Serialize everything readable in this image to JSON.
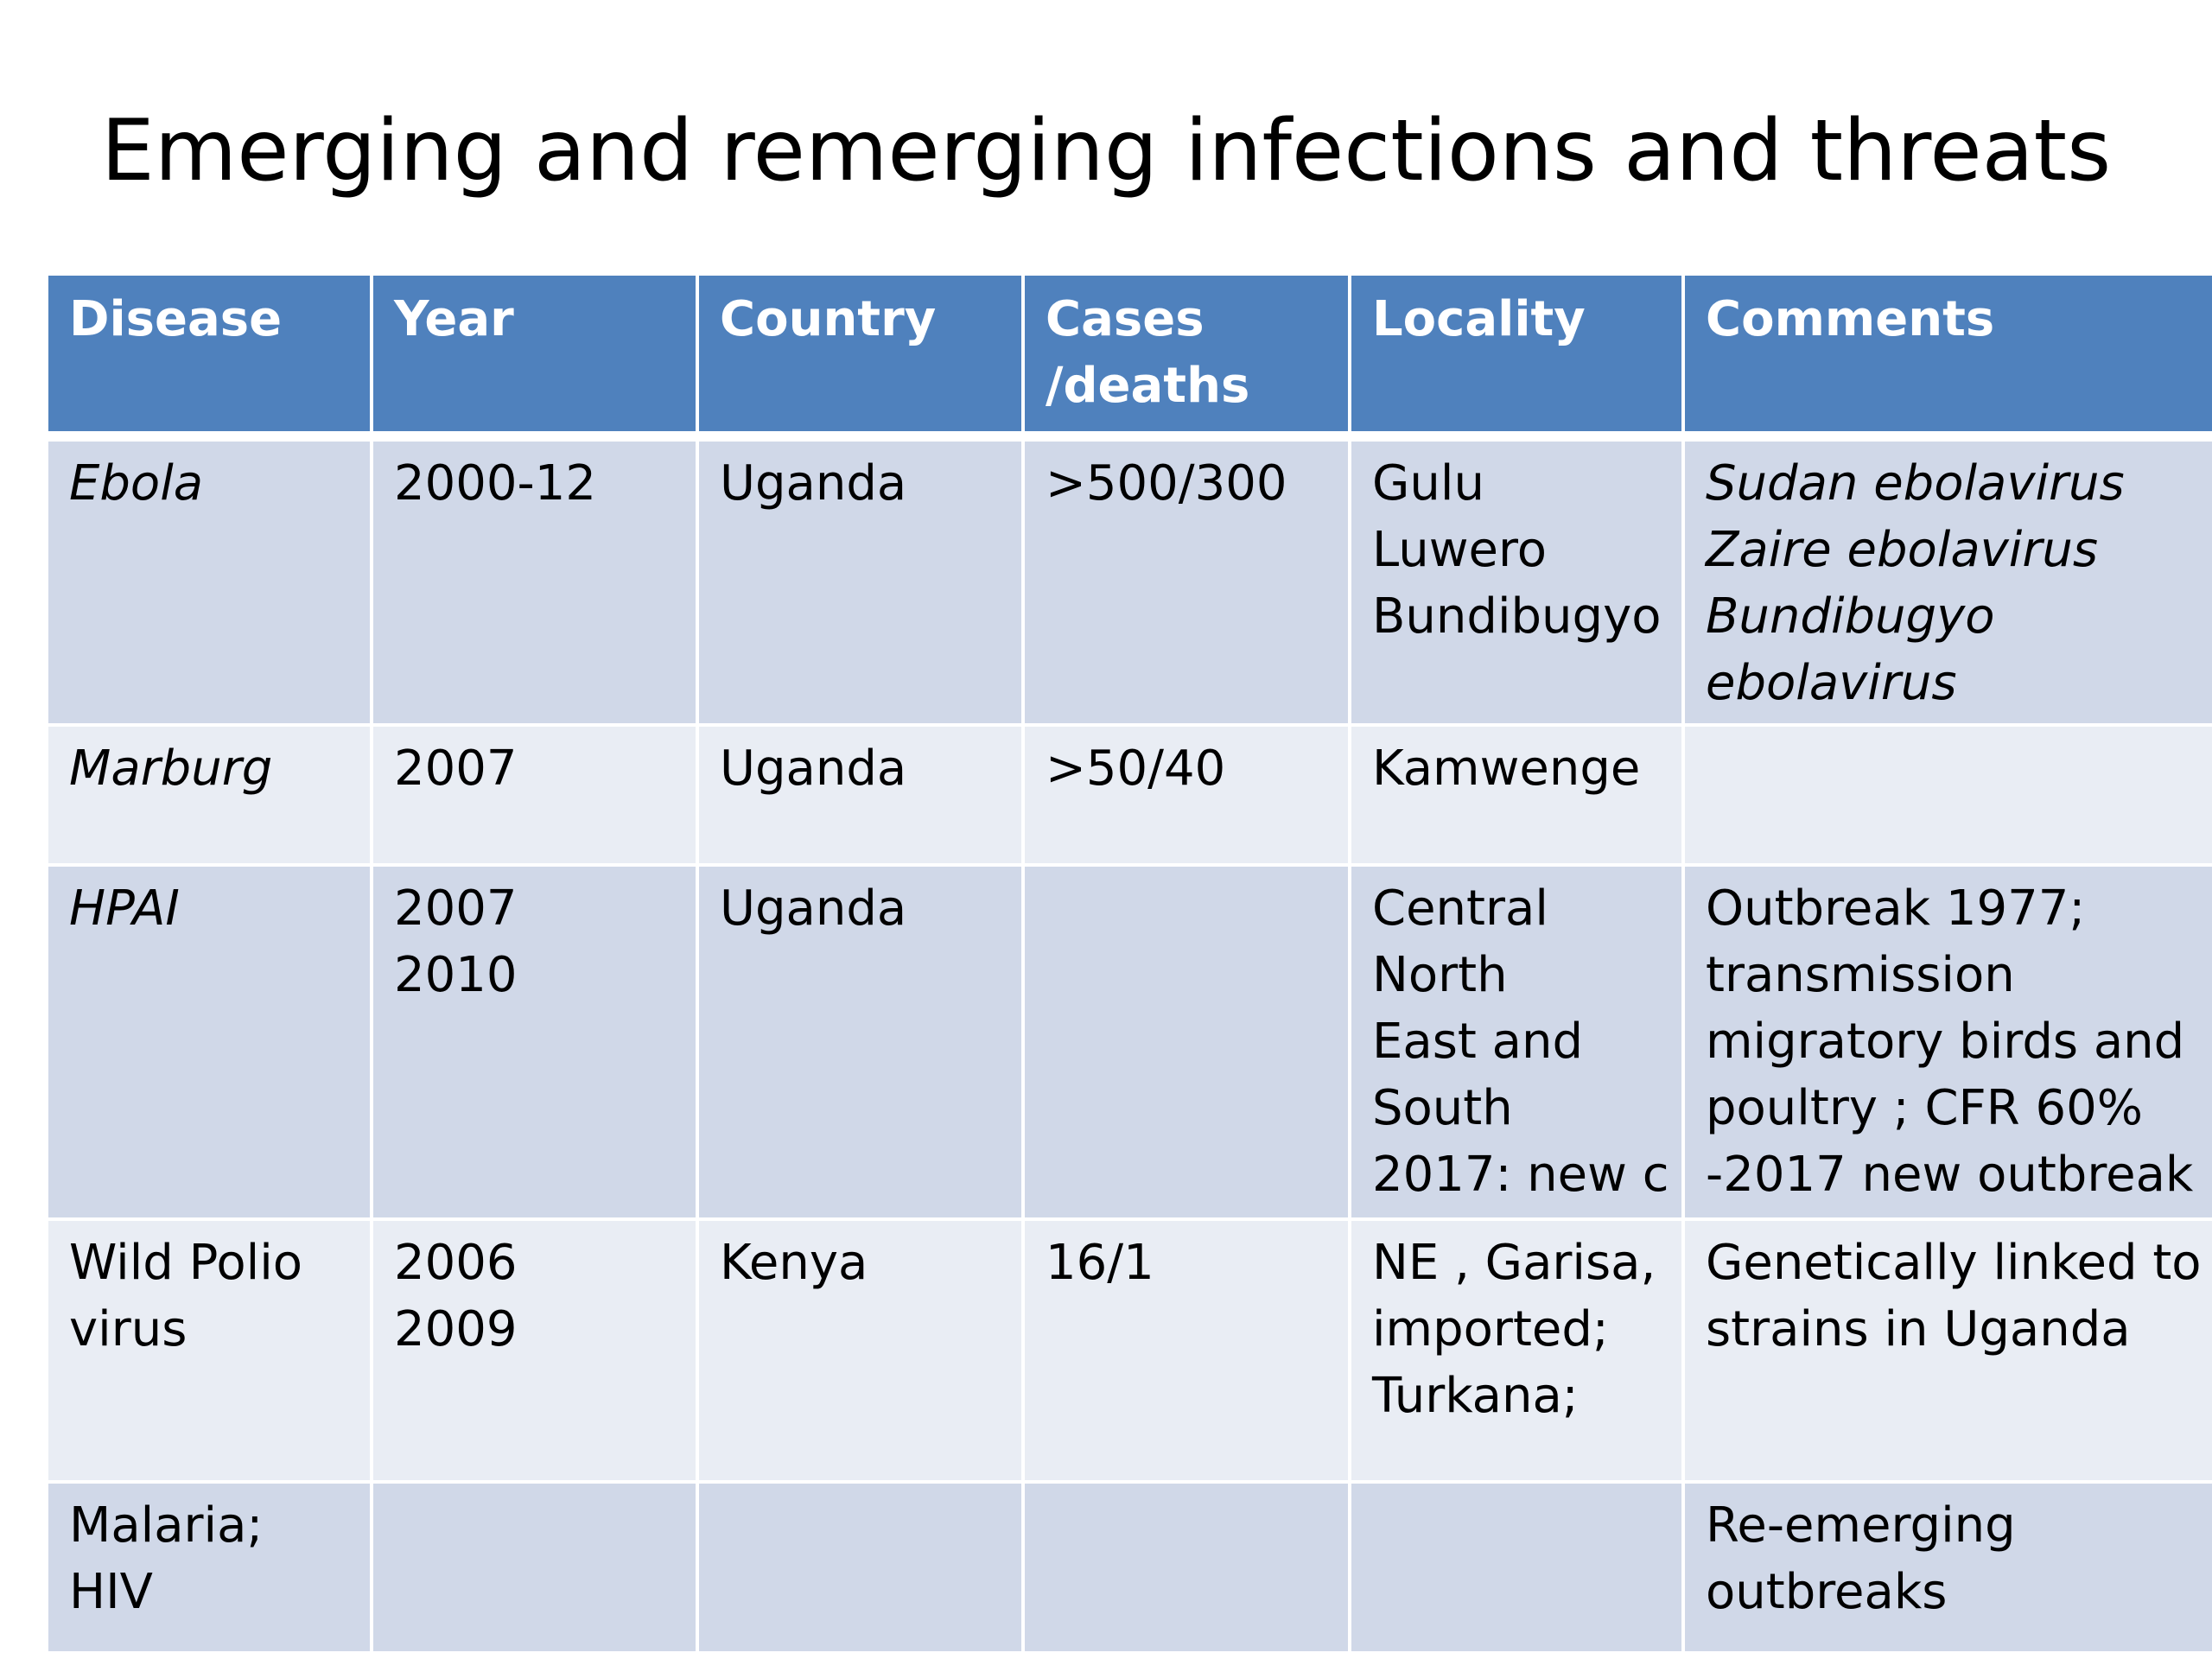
{
  "slide": {
    "title": "Emerging and remerging infections and threats"
  },
  "table": {
    "headers": [
      "Disease",
      "Year",
      "Country",
      "Cases",
      "/deaths",
      "Locality",
      "Comments"
    ],
    "rows": [
      {
        "disease": [
          "Ebola"
        ],
        "year": [
          "2000-12"
        ],
        "country": [
          "Uganda"
        ],
        "cases": [
          "&gt;500/300"
        ],
        "locality": [
          "Gulu",
          "Luwero",
          "Bundibugyo"
        ],
        "comments": [
          "Sudan ebolavirus",
          "Zaire ebolavirus",
          "Bundibugyo",
          "ebolavirus"
        ]
      },
      {
        "disease": [
          "Marburg"
        ],
        "year": [
          "2007"
        ],
        "country": [
          "Uganda"
        ],
        "cases": [
          "&gt;50/40"
        ],
        "locality": [
          "Kamwenge"
        ],
        "comments": []
      },
      {
        "disease": [
          "HPAI"
        ],
        "year": [
          "2007",
          "2010"
        ],
        "country": [
          "Uganda"
        ],
        "cases": [],
        "locality": [
          "Central",
          "North",
          "East and",
          "South",
          "2017: new c"
        ],
        "comments": [
          "Outbreak 1977;",
          "transmission",
          "migratory birds and",
          "poultry ; CFR 60%",
          "-2017 new outbreak"
        ]
      },
      {
        "disease": [
          "Wild Polio",
          "virus"
        ],
        "year": [
          "2006",
          "2009"
        ],
        "country": [
          "Kenya"
        ],
        "cases": [
          "16/1"
        ],
        "locality": [
          "NE , Garisa,",
          "imported;",
          "Turkana;"
        ],
        "comments": [
          "Genetically linked to",
          "strains in Uganda"
        ]
      },
      {
        "disease": [
          "Malaria;",
          "HIV"
        ],
        "year": [],
        "country": [],
        "cases": [],
        "locality": [],
        "comments": [
          "Re-emerging",
          "outbreaks"
        ]
      }
    ]
  }
}
